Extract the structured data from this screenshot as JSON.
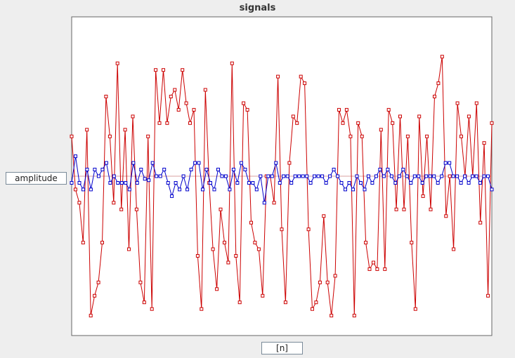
{
  "chart_data": {
    "type": "line",
    "title": "signals",
    "xlabel": "[n]",
    "ylabel": "amplitude",
    "xlim": [
      0,
      100
    ],
    "ylim": [
      -1.2,
      1.2
    ],
    "grid": false,
    "series": [
      {
        "color": "#cc0000",
        "values": [
          0.3,
          -0.1,
          -0.2,
          -0.5,
          0.35,
          -1.05,
          -0.9,
          -0.8,
          -0.5,
          0.6,
          0.3,
          -0.2,
          0.85,
          -0.25,
          0.35,
          -0.55,
          0.45,
          -0.25,
          -0.8,
          -0.95,
          0.3,
          -1.0,
          0.8,
          0.4,
          0.8,
          0.4,
          0.6,
          0.65,
          0.5,
          0.8,
          0.55,
          0.4,
          0.5,
          -0.6,
          -1.0,
          0.65,
          -0.05,
          -0.55,
          -0.85,
          -0.25,
          -0.5,
          -0.65,
          0.85,
          -0.6,
          -0.95,
          0.55,
          0.5,
          -0.35,
          -0.5,
          -0.55,
          -0.9,
          0.0,
          0.0,
          -0.2,
          0.75,
          -0.4,
          -0.95,
          0.1,
          0.45,
          0.4,
          0.75,
          0.7,
          -0.4,
          -1.0,
          -0.95,
          -0.8,
          -0.3,
          -0.8,
          -1.05,
          -0.75,
          0.5,
          0.4,
          0.5,
          0.3,
          -1.05,
          0.4,
          0.3,
          -0.5,
          -0.7,
          -0.65,
          -0.7,
          0.35,
          -0.7,
          0.5,
          0.4,
          -0.25,
          0.45,
          -0.25,
          0.3,
          -0.5,
          -1.0,
          0.45,
          -0.15,
          0.3,
          -0.25,
          0.6,
          0.7,
          0.9,
          -0.3,
          0.0,
          -0.55,
          0.55,
          0.3,
          0.0,
          0.45,
          0.0,
          0.55,
          -0.35,
          0.25,
          -0.9,
          0.4
        ]
      },
      {
        "color": "#0000cc",
        "values": [
          -0.05,
          0.15,
          -0.05,
          -0.1,
          0.05,
          -0.1,
          0.05,
          0.0,
          0.05,
          0.1,
          -0.05,
          0.0,
          -0.05,
          -0.05,
          -0.05,
          -0.1,
          0.1,
          -0.05,
          0.05,
          -0.02,
          -0.03,
          0.1,
          0.0,
          0.0,
          0.05,
          -0.05,
          -0.15,
          -0.05,
          -0.1,
          0.0,
          -0.1,
          0.05,
          0.1,
          0.1,
          -0.1,
          0.05,
          -0.05,
          -0.1,
          0.05,
          0.0,
          0.0,
          -0.1,
          0.05,
          -0.05,
          0.1,
          0.05,
          -0.05,
          -0.05,
          -0.1,
          0.0,
          -0.2,
          0.0,
          0.0,
          0.1,
          -0.05,
          0.0,
          0.0,
          -0.05,
          0.0,
          0.0,
          0.0,
          0.0,
          -0.05,
          0.0,
          0.0,
          0.0,
          -0.05,
          0.0,
          0.05,
          0.0,
          -0.05,
          -0.1,
          -0.05,
          -0.1,
          0.0,
          -0.05,
          -0.1,
          0.0,
          -0.05,
          0.0,
          0.05,
          0.0,
          0.05,
          0.0,
          -0.05,
          0.0,
          0.05,
          0.0,
          -0.05,
          0.0,
          0.0,
          -0.05,
          0.0,
          0.0,
          0.0,
          -0.05,
          0.0,
          0.1,
          0.1,
          0.0,
          0.0,
          -0.05,
          0.0,
          -0.05,
          0.0,
          0.0,
          -0.05,
          0.0,
          0.0,
          -0.1
        ]
      }
    ]
  }
}
